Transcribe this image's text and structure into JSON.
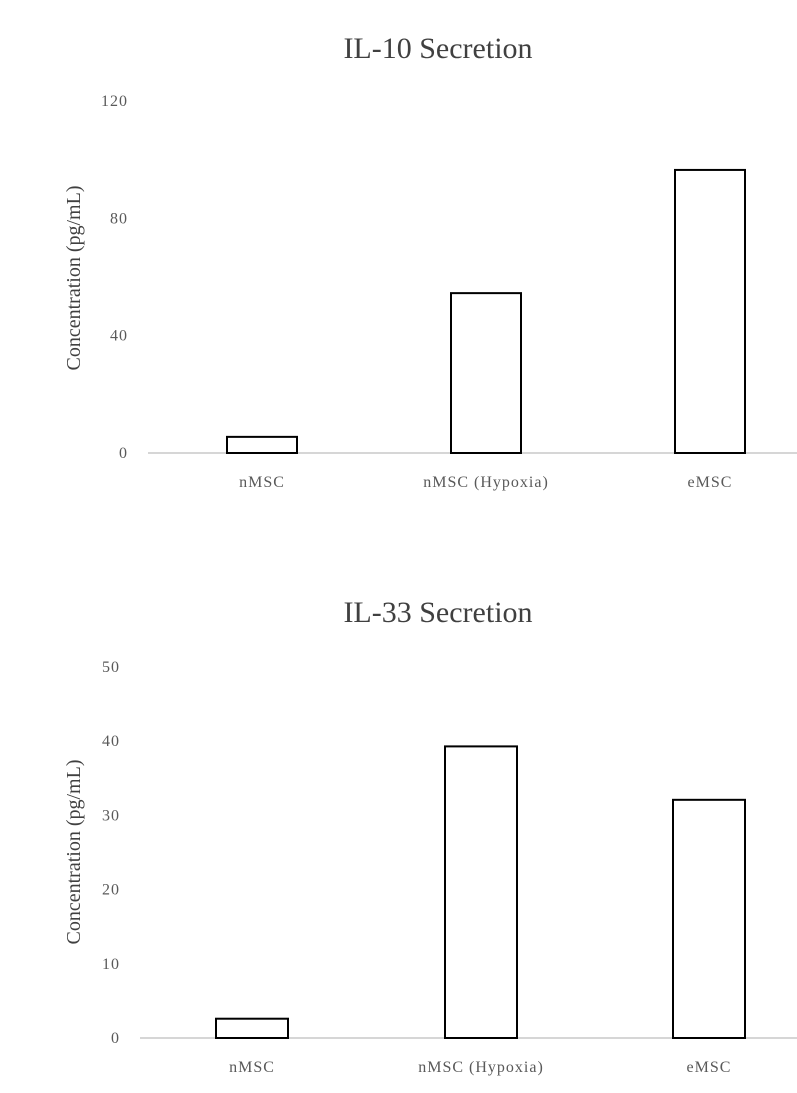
{
  "chart_data": [
    {
      "type": "bar",
      "title": "IL-10 Secretion",
      "ylabel": "Concentration (pg/mL)",
      "xlabel": "",
      "categories": [
        "nMSC",
        "nMSC (Hypoxia)",
        "eMSC"
      ],
      "values": [
        5.5,
        54.5,
        96.5
      ],
      "ylim": [
        0,
        120
      ],
      "yticks": [
        0,
        40,
        80,
        120
      ],
      "ytick_labels": [
        "0",
        "40",
        "80",
        "120"
      ],
      "grid": false,
      "legend": "none",
      "bar_fill": "#ffffff",
      "bar_stroke": "#000000"
    },
    {
      "type": "bar",
      "title": "IL-33 Secretion",
      "ylabel": "Concentration (pg/mL)",
      "xlabel": "",
      "categories": [
        "nMSC",
        "nMSC (Hypoxia)",
        "eMSC"
      ],
      "values": [
        2.6,
        39.3,
        32.1
      ],
      "ylim": [
        0,
        50
      ],
      "yticks": [
        0,
        10,
        20,
        30,
        40,
        50
      ],
      "ytick_labels": [
        "0",
        "10",
        "20",
        "30",
        "40",
        "50"
      ],
      "grid": false,
      "legend": "none",
      "bar_fill": "#ffffff",
      "bar_stroke": "#000000"
    }
  ]
}
